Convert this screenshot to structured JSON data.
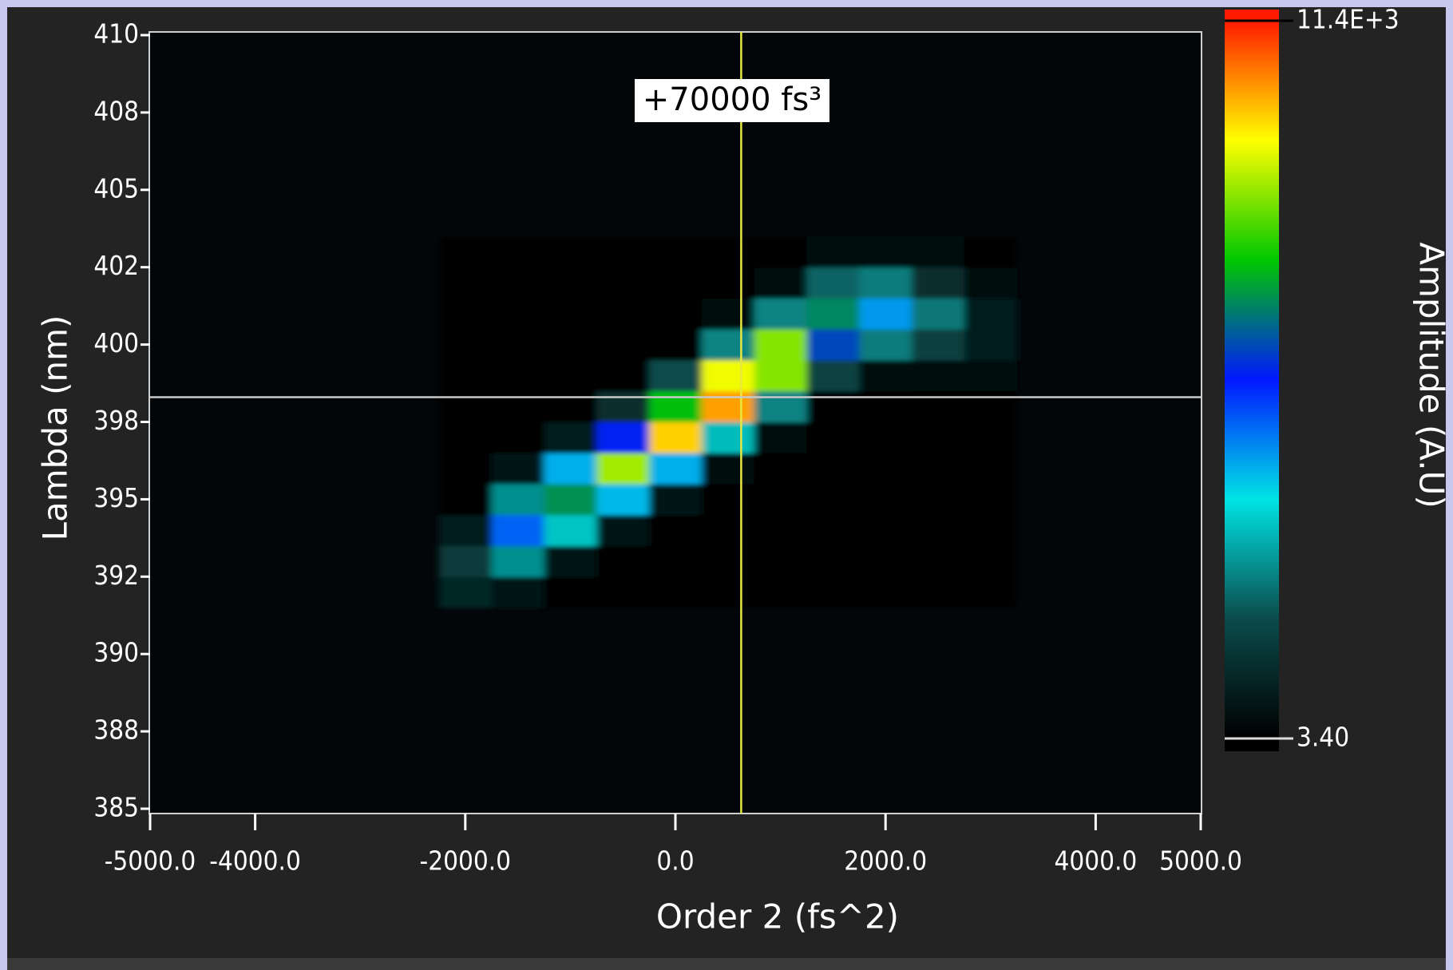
{
  "chart_data": {
    "type": "heatmap",
    "annotation": "+70000 fs³",
    "xlabel": "Order 2 (fs^2)",
    "ylabel": "Lambda (nm)",
    "colorbar_label": "Amplitude (A.U)",
    "x": [
      -2000,
      -1500,
      -1000,
      -500,
      0,
      500,
      1000,
      1500,
      2000,
      2500,
      3000
    ],
    "y": [
      392,
      393,
      394,
      395,
      396,
      397,
      398,
      399,
      400,
      401,
      402,
      403
    ],
    "z": [
      [
        930,
        450,
        4,
        4,
        4,
        4,
        4,
        4,
        4,
        4,
        4
      ],
      [
        1500,
        2750,
        550,
        4,
        4,
        4,
        4,
        4,
        4,
        4,
        4
      ],
      [
        730,
        5000,
        3400,
        600,
        4,
        4,
        4,
        4,
        4,
        4,
        4
      ],
      [
        110,
        2750,
        7000,
        4200,
        450,
        4,
        4,
        4,
        4,
        4,
        4
      ],
      [
        4,
        450,
        4300,
        8800,
        4300,
        370,
        4,
        4,
        4,
        4,
        4
      ],
      [
        4,
        4,
        750,
        5800,
        9900,
        3300,
        250,
        4,
        4,
        4,
        4
      ],
      [
        4,
        4,
        40,
        1200,
        7500,
        10300,
        2600,
        150,
        20,
        40,
        20
      ],
      [
        4,
        4,
        4,
        60,
        1900,
        9400,
        8600,
        1700,
        400,
        330,
        210
      ],
      [
        4,
        4,
        4,
        4,
        150,
        2600,
        8600,
        6200,
        2500,
        1600,
        690
      ],
      [
        4,
        4,
        4,
        4,
        4,
        220,
        2600,
        6900,
        4500,
        2450,
        690
      ],
      [
        4,
        4,
        4,
        4,
        4,
        4,
        250,
        2200,
        2500,
        1150,
        210
      ],
      [
        4,
        4,
        4,
        4,
        4,
        4,
        4,
        240,
        400,
        170,
        20
      ]
    ],
    "xlim": [
      -5000,
      5000
    ],
    "xticks": [
      {
        "value": -5000,
        "label": "-5000.0"
      },
      {
        "value": -4000,
        "label": "-4000.0"
      },
      {
        "value": -2000,
        "label": "-2000.0"
      },
      {
        "value": 0,
        "label": "0.0"
      },
      {
        "value": 2000,
        "label": "2000.0"
      },
      {
        "value": 4000,
        "label": "4000.0"
      },
      {
        "value": 5000,
        "label": "5000.0"
      }
    ],
    "ylim": [
      385,
      410
    ],
    "yticks": [
      385,
      {
        "value": 387.5,
        "label": "388"
      },
      390,
      {
        "value": 392.5,
        "label": "392"
      },
      395,
      {
        "value": 397.5,
        "label": "398"
      },
      400,
      {
        "value": 402.5,
        "label": "402"
      },
      405,
      {
        "value": 407.5,
        "label": "408"
      },
      410
    ],
    "zlim": [
      3.4,
      11400
    ],
    "zticks": [
      {
        "value": 11400,
        "label": "11.4E+3"
      },
      {
        "value": 3.4,
        "label": "3.40"
      }
    ],
    "colorscale": [
      "#000000",
      "#0b4b4b",
      "#00e4e4",
      "#0018ff",
      "#00c800",
      "#ffff00",
      "#ff1a00"
    ],
    "cursor": {
      "x": 626,
      "y": 398.3
    }
  }
}
